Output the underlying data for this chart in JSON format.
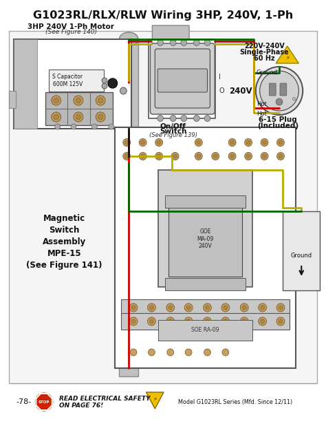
{
  "title": "G1023RL/RLX/RLW Wiring 3HP, 240V, 1-Ph",
  "title_fontsize": 11.5,
  "bg_color": "#ffffff",
  "motor_label_line1": "3HP 240V 1-Ph Motor",
  "motor_label_line2": "(See Figure 140)",
  "motor_sublabel": "S Capacitor\n600M 125V",
  "switch_label_line1": "On/Off",
  "switch_label_line2": "Switch",
  "switch_label_line3": "(See Figure 139)",
  "magnetic_label": "Magnetic\nSwitch\nAssembly\nMPE-15\n(See Figure 141)",
  "plug_label1_line1": "220V-240V",
  "plug_label1_line2": "Single-Phase",
  "plug_label1_line3": "60 Hz",
  "plug_label2": "240V",
  "plug_label3_line1": "6-15 Plug",
  "plug_label3_line2": "(Included)",
  "ground_label": "Ground",
  "hot_label": "Hot",
  "footer_page": "-78-",
  "footer_safety_line1": "READ ELECTRICAL SAFETY",
  "footer_safety_line2": "ON PAGE 76!",
  "footer_model": "Model G1023RL Series (Mfd. Since 12/11)",
  "wire_red": "#cc0000",
  "wire_green": "#006600",
  "wire_yellow": "#bbaa00",
  "wire_black": "#111111",
  "wire_white": "#cccccc",
  "stop_red": "#cc2200",
  "warn_yellow": "#f0c000",
  "box_light": "#e8e8e8",
  "box_mid": "#d0d0d0",
  "box_dark": "#bbbbbb",
  "pipe_color": "#c0c0c0",
  "terminal_color": "#c8a060",
  "terminal_edge": "#806030"
}
